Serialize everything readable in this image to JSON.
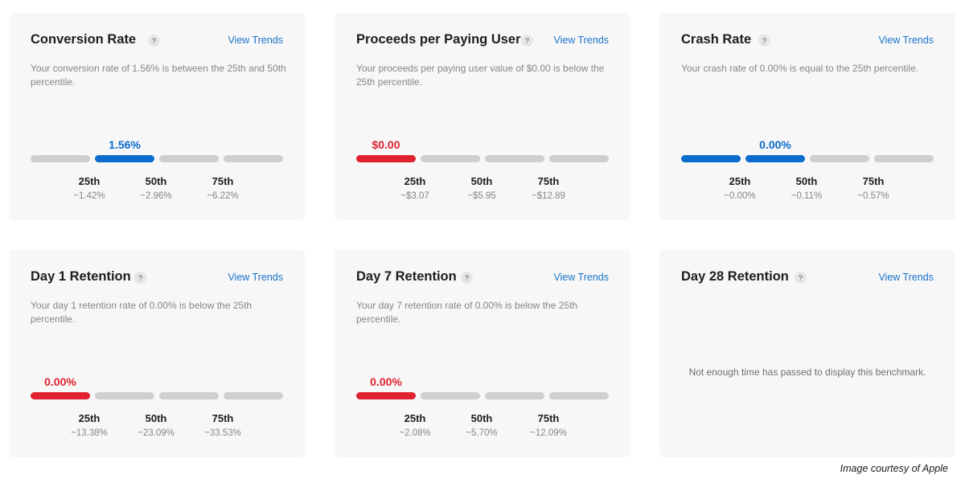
{
  "colors": {
    "blue": "#0a6ccc",
    "red": "#e0222f",
    "gray": "#cfcfd1"
  },
  "cards": [
    {
      "title": "Conversion Rate",
      "help": "?",
      "link": "View Trends",
      "description": "Your conversion rate of 1.56% is between the 25th and 50th percentile.",
      "value": "1.56%",
      "value_color": "blue",
      "filled_bar_index": 1,
      "fill_through": false,
      "percentiles": [
        {
          "label": "25th",
          "value": "~1.42%"
        },
        {
          "label": "50th",
          "value": "~2.96%"
        },
        {
          "label": "75th",
          "value": "~6.22%"
        }
      ]
    },
    {
      "title": "Proceeds per Paying User",
      "help": "?",
      "link": "View Trends",
      "description": "Your proceeds per paying user value of $0.00 is below the 25th percentile.",
      "value": "$0.00",
      "value_color": "red",
      "filled_bar_index": 0,
      "fill_through": false,
      "percentiles": [
        {
          "label": "25th",
          "value": "~$3.07"
        },
        {
          "label": "50th",
          "value": "~$5.95"
        },
        {
          "label": "75th",
          "value": "~$12.89"
        }
      ]
    },
    {
      "title": "Crash Rate",
      "help": "?",
      "link": "View Trends",
      "description": "Your crash rate of 0.00% is equal to the 25th percentile.",
      "value": "0.00%",
      "value_color": "blue",
      "filled_bar_index": 1,
      "fill_through": true,
      "percentiles": [
        {
          "label": "25th",
          "value": "~0.00%"
        },
        {
          "label": "50th",
          "value": "~0.11%"
        },
        {
          "label": "75th",
          "value": "~0.57%"
        }
      ]
    },
    {
      "title": "Day 1 Retention",
      "help": "?",
      "link": "View Trends",
      "description": "Your day 1 retention rate of 0.00% is below the 25th percentile.",
      "value": "0.00%",
      "value_color": "red",
      "filled_bar_index": 0,
      "fill_through": false,
      "percentiles": [
        {
          "label": "25th",
          "value": "~13.38%"
        },
        {
          "label": "50th",
          "value": "~23.09%"
        },
        {
          "label": "75th",
          "value": "~33.53%"
        }
      ]
    },
    {
      "title": "Day 7 Retention",
      "help": "?",
      "link": "View Trends",
      "description": "Your day 7 retention rate of 0.00% is below the 25th percentile.",
      "value": "0.00%",
      "value_color": "red",
      "filled_bar_index": 0,
      "fill_through": false,
      "percentiles": [
        {
          "label": "25th",
          "value": "~2.08%"
        },
        {
          "label": "50th",
          "value": "~5.70%"
        },
        {
          "label": "75th",
          "value": "~12.09%"
        }
      ]
    },
    {
      "title": "Day 28 Retention",
      "help": "?",
      "link": "View Trends",
      "empty_message": "Not enough time has passed to display this benchmark."
    }
  ],
  "credit": "Image courtesy of Apple"
}
